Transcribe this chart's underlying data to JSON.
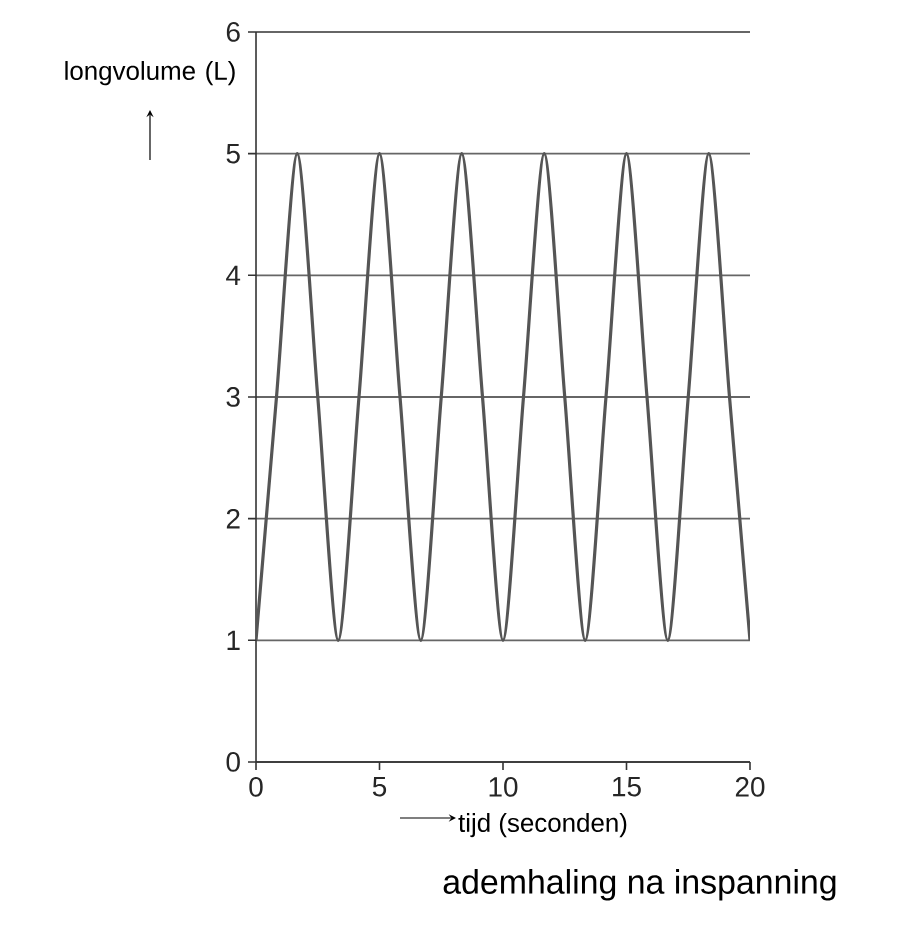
{
  "chart_data": {
    "type": "line",
    "title": "ademhaling na inspanning",
    "xlabel": "tijd (seconden)",
    "ylabel": "longvolume (L)",
    "xlim": [
      0,
      20
    ],
    "ylim": [
      0,
      6
    ],
    "xticks": [
      0,
      5,
      10,
      15,
      20
    ],
    "yticks": [
      0,
      1,
      2,
      3,
      4,
      5,
      6
    ],
    "grid": "y",
    "series": [
      {
        "color": "#555555",
        "x": [
          0,
          0.83,
          1.67,
          2.5,
          3.33,
          4.17,
          5,
          5.83,
          6.67,
          7.5,
          8.33,
          9.17,
          10,
          10.83,
          11.67,
          12.5,
          13.33,
          14.17,
          15,
          15.83,
          16.67,
          17.5,
          18.33,
          19.17,
          20
        ],
        "values": [
          1,
          3,
          5,
          3,
          1,
          3,
          5,
          3,
          1,
          3,
          5,
          3,
          1,
          3,
          5,
          3,
          1,
          3,
          5,
          3,
          1,
          3,
          5,
          3,
          1
        ]
      }
    ]
  }
}
